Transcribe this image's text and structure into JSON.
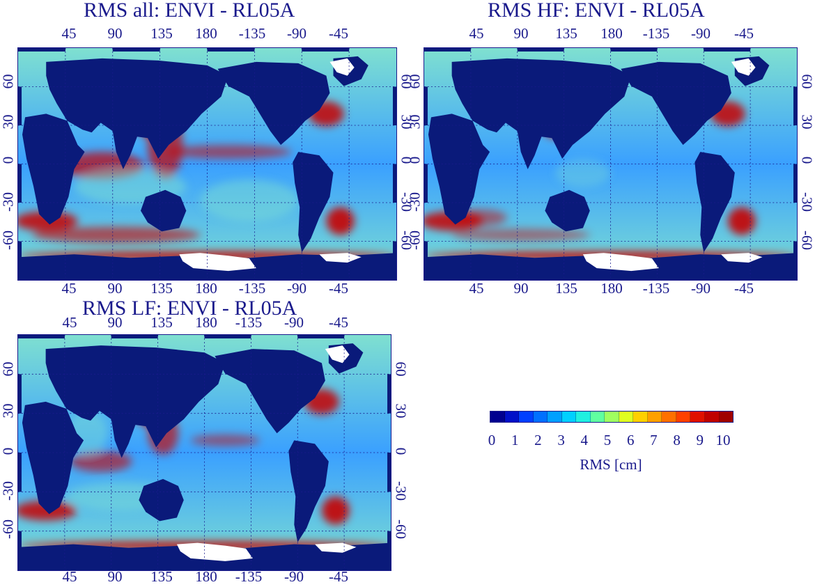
{
  "panels": {
    "all": {
      "title": "RMS all: ENVI - RL05A"
    },
    "hf": {
      "title": "RMS HF: ENVI - RL05A"
    },
    "lf": {
      "title": "RMS LF: ENVI - RL05A"
    }
  },
  "lon_ticks": [
    "45",
    "90",
    "135",
    "180",
    "-135",
    "-90",
    "-45"
  ],
  "lat_ticks": [
    "60",
    "30",
    "0",
    "-30",
    "-60"
  ],
  "colorbar": {
    "min": 0,
    "max": 10,
    "tick_labels": [
      "0",
      "1",
      "2",
      "3",
      "4",
      "5",
      "6",
      "7",
      "8",
      "9",
      "10"
    ],
    "label": "RMS [cm]",
    "colors": [
      "#00008f",
      "#0010c8",
      "#0040ff",
      "#0070ff",
      "#00a0ff",
      "#00d0ff",
      "#20f0e0",
      "#60ffa0",
      "#a0ff60",
      "#e0ff20",
      "#ffd000",
      "#ffa000",
      "#ff7000",
      "#ff4000",
      "#e01000",
      "#c00000",
      "#a00000"
    ]
  },
  "colors": {
    "land": "#0a1a7a",
    "ice": "#ffffff",
    "ocean_low": "#3aa0ff",
    "ocean_mid": "#7fe0d0",
    "ocean_high": "#c80000",
    "text": "#1a1a8c"
  }
}
